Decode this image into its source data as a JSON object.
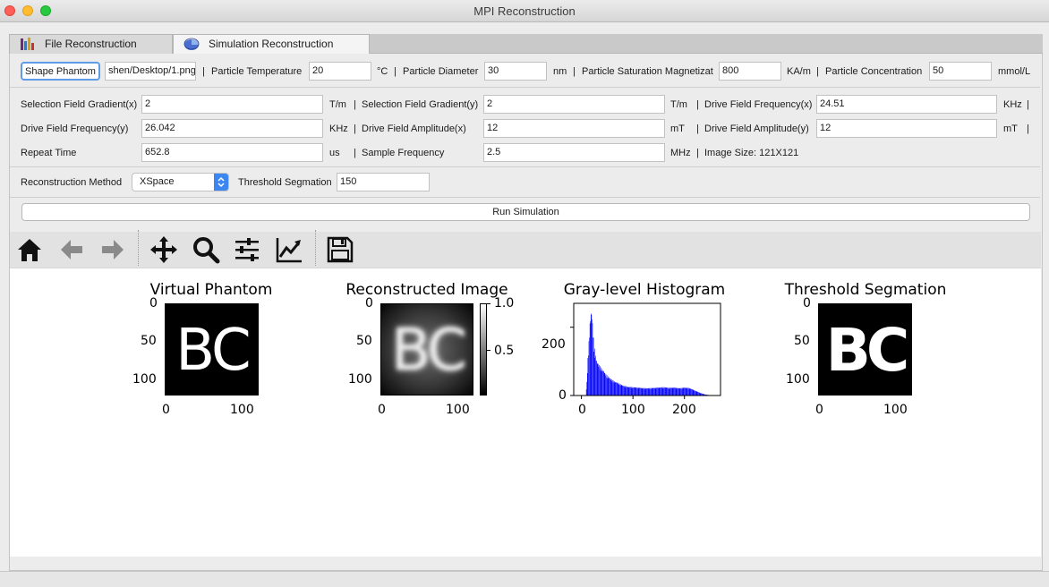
{
  "window": {
    "title": "MPI Reconstruction"
  },
  "tabs": [
    {
      "label": "File Reconstruction",
      "icon": "bar-chart-icon",
      "active": false
    },
    {
      "label": "Simulation Reconstruction",
      "icon": "pie-chart-icon",
      "active": true
    }
  ],
  "phantom_row": {
    "shape_button": "Shape Phantom",
    "file_path": "shen/Desktop/1.png",
    "temp_label": "Particle Temperature",
    "temp_value": "20",
    "temp_unit": "°C",
    "diam_label": "Particle Diameter",
    "diam_value": "30",
    "diam_unit": "nm",
    "sat_label": "Particle Saturation Magnetizat",
    "sat_value": "800",
    "sat_unit": "KA/m",
    "conc_label": "Particle Concentration",
    "conc_value": "50",
    "conc_unit": "mmol/L"
  },
  "params": {
    "sfgx_label": "Selection Field Gradient(x)",
    "sfgx_value": "2",
    "sfgx_unit": "T/m",
    "sfgy_label": "Selection Field Gradient(y)",
    "sfgy_value": "2",
    "sfgy_unit": "T/m",
    "dffx_label": "Drive Field Frequency(x)",
    "dffx_value": "24.51",
    "dffx_unit": "KHz",
    "dffy_label": "Drive Field Frequency(y)",
    "dffy_value": "26.042",
    "dffy_unit": "KHz",
    "dfax_label": "Drive Field Amplitude(x)",
    "dfax_value": "12",
    "dfax_unit": "mT",
    "dfay_label": "Drive Field Amplitude(y)",
    "dfay_value": "12",
    "dfay_unit": "mT",
    "rep_label": "Repeat Time",
    "rep_value": "652.8",
    "rep_unit": "us",
    "sf_label": "Sample Frequency",
    "sf_value": "2.5",
    "sf_unit": "MHz",
    "image_size": "Image Size: 121X121"
  },
  "recon": {
    "method_label": "Reconstruction Method",
    "method_value": "XSpace",
    "threshold_label": "Threshold Segmation",
    "threshold_value": "150"
  },
  "run_button": "Run Simulation",
  "toolbar": {
    "icons": [
      "home-icon",
      "back-arrow-icon",
      "forward-arrow-icon",
      "pan-icon",
      "zoom-icon",
      "configure-subplots-icon",
      "edit-axis-icon",
      "save-icon"
    ]
  },
  "plots": {
    "phantom": {
      "title": "Virtual Phantom",
      "letters": "BC",
      "yticks": [
        "0",
        "50",
        "100"
      ],
      "xticks": [
        "0",
        "100"
      ]
    },
    "recon": {
      "title": "Reconstructed Image",
      "letters": "BC",
      "yticks": [
        "0",
        "50",
        "100"
      ],
      "xticks": [
        "0",
        "100"
      ],
      "cbar_ticks": [
        "1.0",
        "0.5"
      ]
    },
    "hist": {
      "title": "Gray-level Histogram",
      "yticks": [
        "200",
        "0"
      ],
      "xticks": [
        "0",
        "100",
        "200"
      ],
      "color": "#0000ff"
    },
    "thresh": {
      "title": "Threshold Segmation",
      "letters": "BC",
      "yticks": [
        "0",
        "50",
        "100"
      ],
      "xticks": [
        "0",
        "100"
      ]
    }
  },
  "chart_data": {
    "type": "bar",
    "title": "Gray-level Histogram",
    "xlabel": "",
    "ylabel": "",
    "xlim": [
      -15,
      270
    ],
    "ylim": [
      0,
      270
    ],
    "x": [
      8,
      10,
      12,
      14,
      16,
      18,
      20,
      22,
      24,
      26,
      28,
      30,
      34,
      38,
      42,
      46,
      50,
      55,
      60,
      70,
      80,
      90,
      100,
      110,
      120,
      130,
      140,
      150,
      160,
      170,
      180,
      190,
      200,
      210,
      220,
      230,
      240,
      250,
      260
    ],
    "values": [
      0,
      40,
      110,
      160,
      215,
      250,
      240,
      190,
      150,
      125,
      110,
      100,
      90,
      82,
      75,
      65,
      58,
      52,
      45,
      38,
      30,
      26,
      25,
      24,
      22,
      22,
      23,
      24,
      25,
      23,
      24,
      22,
      24,
      22,
      15,
      8,
      3,
      1,
      0
    ],
    "bar_color": "#0000ff"
  }
}
